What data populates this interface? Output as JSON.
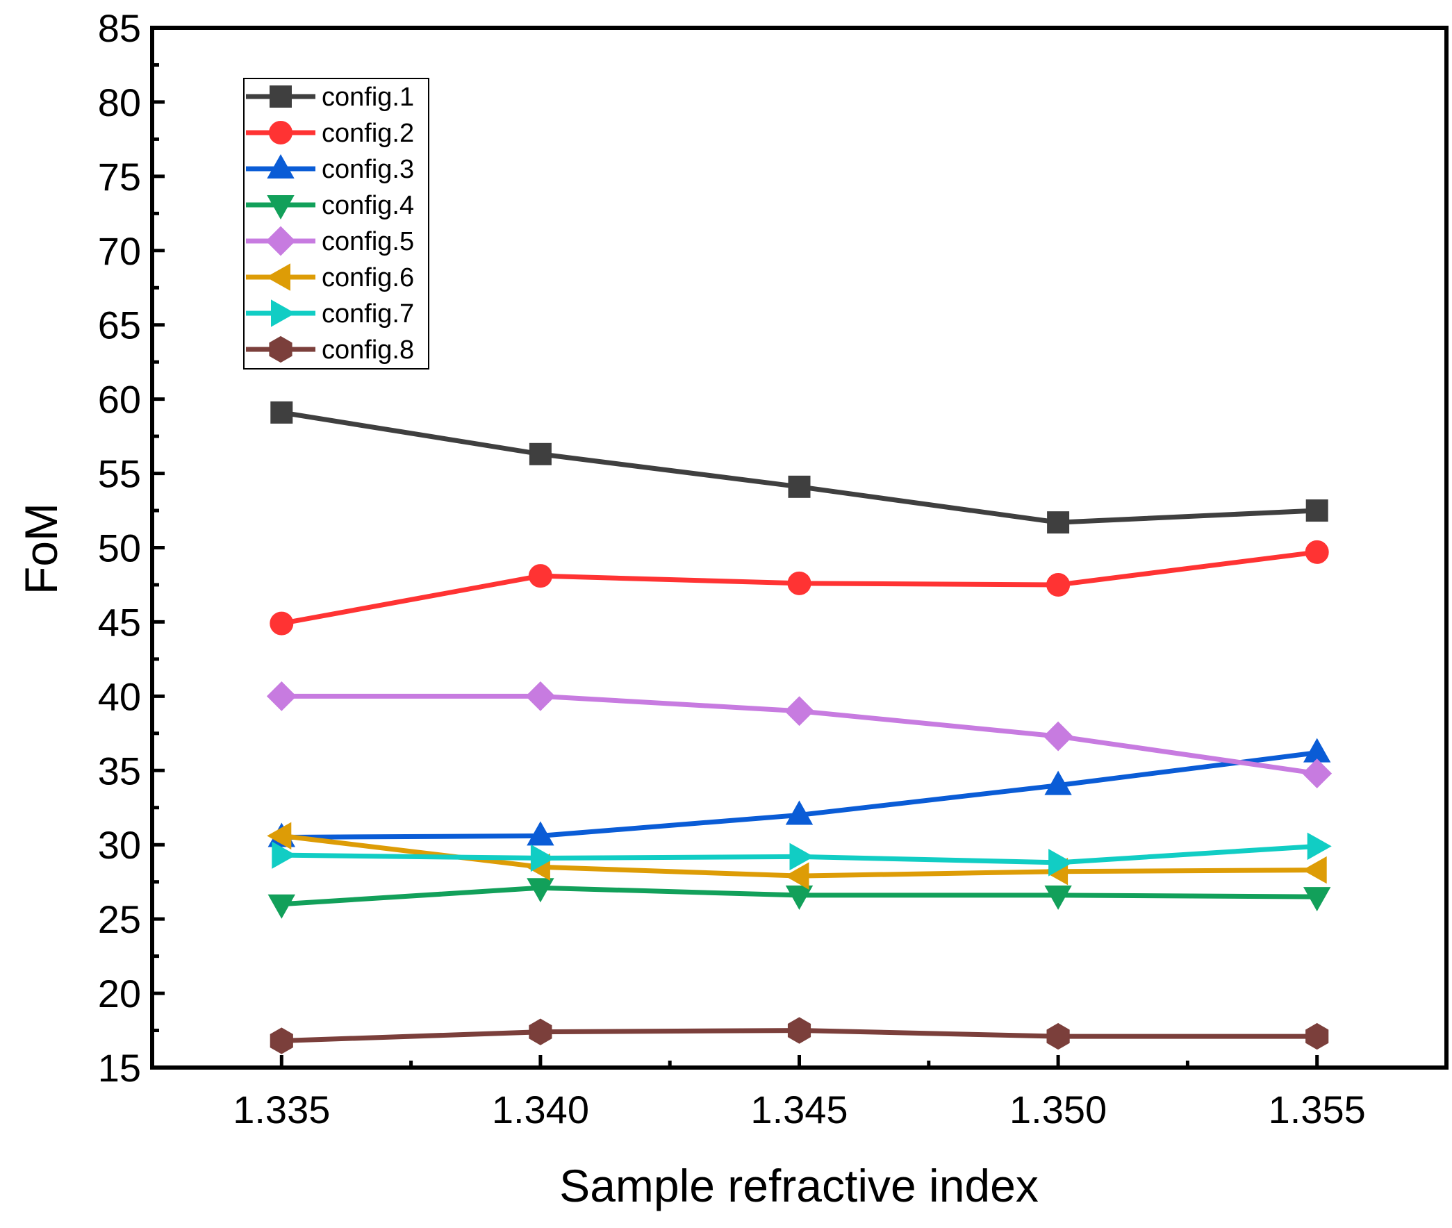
{
  "chart_data": {
    "type": "line",
    "title": "",
    "xlabel": "Sample refractive index",
    "ylabel": "FoM",
    "x": [
      1.335,
      1.34,
      1.345,
      1.35,
      1.355
    ],
    "x_tick_labels": [
      "1.335",
      "1.340",
      "1.345",
      "1.350",
      "1.355"
    ],
    "xlim": [
      1.3325,
      1.3575
    ],
    "ylim": [
      15,
      85
    ],
    "y_ticks": [
      15,
      20,
      25,
      30,
      35,
      40,
      45,
      50,
      55,
      60,
      65,
      70,
      75,
      80,
      85
    ],
    "y_tick_labels": [
      "15",
      "20",
      "25",
      "30",
      "35",
      "40",
      "45",
      "50",
      "55",
      "60",
      "65",
      "70",
      "75",
      "80",
      "85"
    ],
    "grid": false,
    "legend_position": "top-left",
    "series": [
      {
        "name": "config.1",
        "color": "#3f3f3f",
        "marker": "square",
        "values": [
          59.1,
          56.3,
          54.1,
          51.7,
          52.5
        ]
      },
      {
        "name": "config.2",
        "color": "#ff3333",
        "marker": "circle",
        "values": [
          44.9,
          48.1,
          47.6,
          47.5,
          49.7
        ]
      },
      {
        "name": "config.3",
        "color": "#0a5cd6",
        "marker": "triangle-up",
        "values": [
          30.5,
          30.6,
          32.0,
          34.0,
          36.2
        ]
      },
      {
        "name": "config.4",
        "color": "#12a05a",
        "marker": "triangle-down",
        "values": [
          26.0,
          27.1,
          26.6,
          26.6,
          26.5
        ]
      },
      {
        "name": "config.5",
        "color": "#c77be0",
        "marker": "diamond",
        "values": [
          40.0,
          40.0,
          39.0,
          37.3,
          34.8
        ]
      },
      {
        "name": "config.6",
        "color": "#dd9c06",
        "marker": "triangle-left",
        "values": [
          30.6,
          28.5,
          27.9,
          28.2,
          28.3
        ]
      },
      {
        "name": "config.7",
        "color": "#11cdc4",
        "marker": "triangle-right",
        "values": [
          29.3,
          29.1,
          29.2,
          28.8,
          29.9
        ]
      },
      {
        "name": "config.8",
        "color": "#7b3f3b",
        "marker": "hexagon",
        "values": [
          16.8,
          17.4,
          17.5,
          17.1,
          17.1
        ]
      }
    ]
  }
}
